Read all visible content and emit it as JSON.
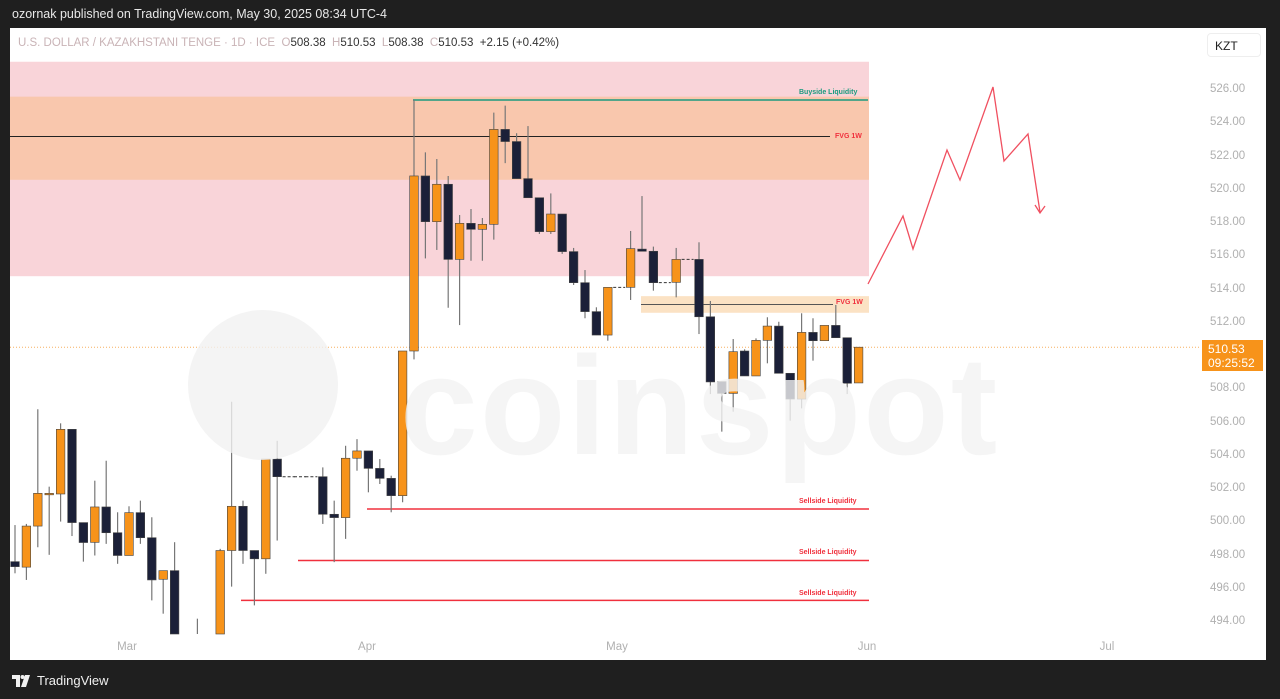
{
  "header": {
    "published": "ozornak published on TradingView.com, May 30, 2025 08:34 UTC-4"
  },
  "legend": {
    "symbol": "U.S. DOLLAR / KAZAKHSTANI TENGE · 1D · ICE",
    "o_label": "O",
    "o": "508.38",
    "h_label": "H",
    "h": "510.53",
    "l_label": "L",
    "l": "508.38",
    "c_label": "C",
    "c": "510.53",
    "change": "+2.15 (+0.42%)"
  },
  "currency_button": "KZT",
  "price_tag": {
    "price": "510.53",
    "countdown": "09:25:52"
  },
  "footer": {
    "brand": "TradingView"
  },
  "watermark": "coinspot",
  "colors": {
    "up": "#f7931a",
    "down": "#1b2038",
    "zone_pink": "#f9d4d9",
    "zone_orange": "#f9c7ad",
    "buyside": "#1a9a7e",
    "sellside": "#f0303d",
    "fvg_text": "#f0303d",
    "projection": "#f05060"
  },
  "annotations": {
    "buyside": "Buyside Liquidity",
    "fvg_upper": "FVG 1W",
    "fvg_lower": "FVG 1W",
    "sellside_1": "Sellside Liquidity",
    "sellside_2": "Sellside Liquidity",
    "sellside_3": "Sellside Liquidity"
  },
  "chart_data": {
    "type": "candlestick",
    "ylim": [
      493.3,
      527.7
    ],
    "y_ticks": [
      "526.00",
      "524.00",
      "522.00",
      "520.00",
      "518.00",
      "516.00",
      "514.00",
      "512.00",
      "510.00",
      "508.00",
      "506.00",
      "504.00",
      "502.00",
      "500.00",
      "498.00",
      "496.00",
      "494.00"
    ],
    "x_ticks": [
      "Mar",
      "Apr",
      "May",
      "Jun",
      "Jul"
    ],
    "last_price": 510.53,
    "levels": {
      "buyside": 525.4,
      "fvg_upper": 523.2,
      "fvg_lower": 513.1,
      "sellside": [
        500.8,
        497.7,
        495.3
      ]
    },
    "zones": [
      {
        "kind": "pink",
        "top": 527.7,
        "bottom": 514.8
      },
      {
        "kind": "orange",
        "top": 525.6,
        "bottom": 520.6
      },
      {
        "kind": "fvg",
        "top": 513.6,
        "bottom": 512.6
      }
    ],
    "candles": [
      [
        497.63,
        499.83,
        496.93,
        497.33
      ],
      [
        497.3,
        499.9,
        496.53,
        499.77
      ],
      [
        499.77,
        506.8,
        498.5,
        501.74
      ],
      [
        501.74,
        502.14,
        498.04,
        501.74
      ],
      [
        501.7,
        505.95,
        500.04,
        505.59
      ],
      [
        505.59,
        505.59,
        499.17,
        499.98
      ],
      [
        499.98,
        499.98,
        497.63,
        498.78
      ],
      [
        498.79,
        502.5,
        498.0,
        500.92
      ],
      [
        500.92,
        503.7,
        498.7,
        499.37
      ],
      [
        499.37,
        500.6,
        497.5,
        498.0
      ],
      [
        498.0,
        500.96,
        498.0,
        500.58
      ],
      [
        500.58,
        501.3,
        498.7,
        499.07
      ],
      [
        499.07,
        500.3,
        495.3,
        496.53
      ],
      [
        496.57,
        497.09,
        494.5,
        497.09
      ],
      [
        497.09,
        498.8,
        492.5,
        492.8
      ],
      [
        492.0,
        493.1,
        491.0,
        491.5
      ],
      [
        492.5,
        494.2,
        491.8,
        492.9
      ],
      [
        492.0,
        492.8,
        491.5,
        492.3
      ],
      [
        492.6,
        498.4,
        492.0,
        498.3
      ],
      [
        498.3,
        507.25,
        496.13,
        500.96
      ],
      [
        500.96,
        501.3,
        497.5,
        498.3
      ],
      [
        498.3,
        498.3,
        495.0,
        497.8
      ],
      [
        497.8,
        503.8,
        496.9,
        503.8
      ],
      [
        503.8,
        504.9,
        498.9,
        502.74
      ],
      [
        502.74,
        502.74,
        502.74,
        502.74
      ],
      [
        502.74,
        502.74,
        502.74,
        502.74
      ],
      [
        502.74,
        502.74,
        502.74,
        502.74
      ],
      [
        502.74,
        503.3,
        499.9,
        500.48
      ],
      [
        500.48,
        501.3,
        497.6,
        500.28
      ],
      [
        500.28,
        504.6,
        499.0,
        503.85
      ],
      [
        503.85,
        505.0,
        503.1,
        504.29
      ],
      [
        504.29,
        504.29,
        501.8,
        503.24
      ],
      [
        503.24,
        503.8,
        502.3,
        502.64
      ],
      [
        502.64,
        502.8,
        500.6,
        501.6
      ],
      [
        501.6,
        510.3,
        501.2,
        510.3
      ],
      [
        510.3,
        525.4,
        509.8,
        520.83
      ],
      [
        520.83,
        522.25,
        515.87,
        518.08
      ],
      [
        518.08,
        521.85,
        516.38,
        520.33
      ],
      [
        520.33,
        520.83,
        512.9,
        515.81
      ],
      [
        515.81,
        518.48,
        511.86,
        517.98
      ],
      [
        517.98,
        518.84,
        515.73,
        517.62
      ],
      [
        517.62,
        518.3,
        515.73,
        517.92
      ],
      [
        517.92,
        524.64,
        517.0,
        523.63
      ],
      [
        523.63,
        525.06,
        521.6,
        522.9
      ],
      [
        522.9,
        523.4,
        520.67,
        520.67
      ],
      [
        520.67,
        523.83,
        519.52,
        519.52
      ],
      [
        519.52,
        519.52,
        517.34,
        517.48
      ],
      [
        517.48,
        519.78,
        517.34,
        518.54
      ],
      [
        518.54,
        518.54,
        516.14,
        516.28
      ],
      [
        516.28,
        516.5,
        514.27,
        514.41
      ],
      [
        514.41,
        515.17,
        512.27,
        512.67
      ],
      [
        512.67,
        512.93,
        511.26,
        511.26
      ],
      [
        511.26,
        514.13,
        510.92,
        514.13
      ],
      [
        514.13,
        514.13,
        514.13,
        514.13
      ],
      [
        514.13,
        517.52,
        513.37,
        516.46
      ],
      [
        516.43,
        519.62,
        516.3,
        516.3
      ],
      [
        516.3,
        516.58,
        513.93,
        514.41
      ],
      [
        514.41,
        514.41,
        514.41,
        514.41
      ],
      [
        514.43,
        516.5,
        513.53,
        515.81
      ],
      [
        515.81,
        515.81,
        515.81,
        515.81
      ],
      [
        515.81,
        516.84,
        511.32,
        512.36
      ],
      [
        512.36,
        513.31,
        507.71,
        508.44
      ],
      [
        508.46,
        508.46,
        505.45,
        507.75
      ],
      [
        507.75,
        511.02,
        506.65,
        510.26
      ],
      [
        510.3,
        510.4,
        508.8,
        508.8
      ],
      [
        508.8,
        511.06,
        508.8,
        510.94
      ],
      [
        510.94,
        512.33,
        509.56,
        511.8
      ],
      [
        511.8,
        512.06,
        508.96,
        508.96
      ],
      [
        508.96,
        508.96,
        506.11,
        507.41
      ],
      [
        507.41,
        512.57,
        506.85,
        511.42
      ],
      [
        511.42,
        512.27,
        509.72,
        510.92
      ],
      [
        510.92,
        511.84,
        510.92,
        511.84
      ],
      [
        511.84,
        513.07,
        511.1,
        511.1
      ],
      [
        511.1,
        511.1,
        507.71,
        508.36
      ],
      [
        508.38,
        510.53,
        508.38,
        510.53
      ]
    ]
  }
}
